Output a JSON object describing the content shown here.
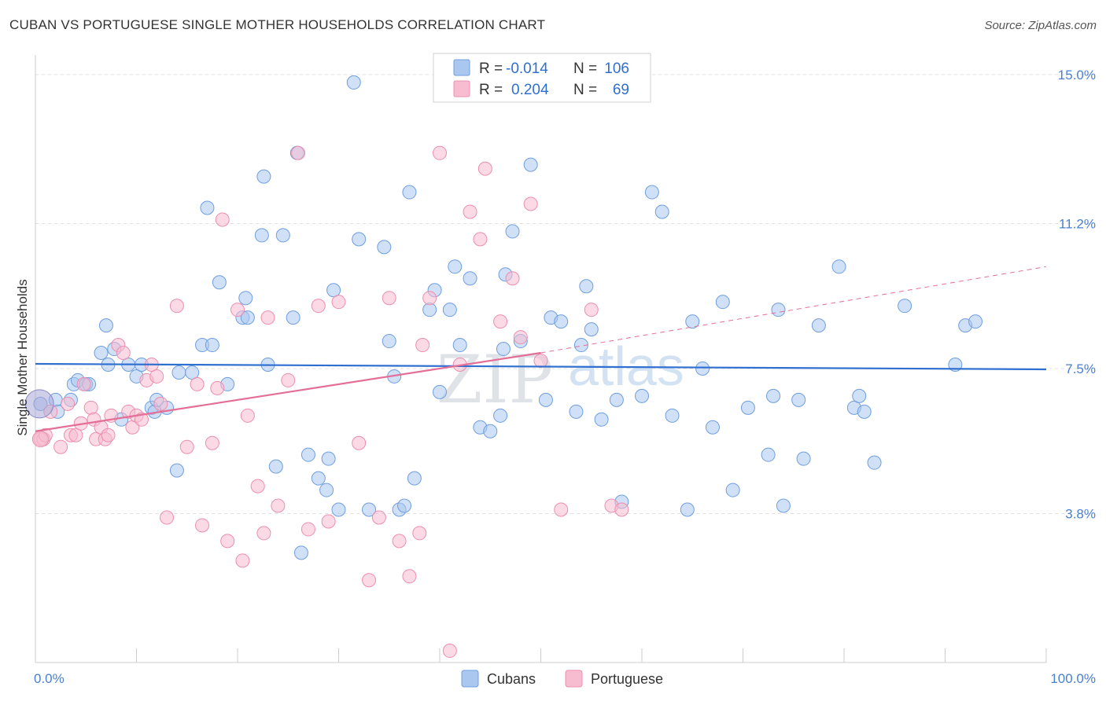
{
  "header": {
    "title": "CUBAN VS PORTUGUESE SINGLE MOTHER HOUSEHOLDS CORRELATION CHART",
    "source": "Source: ZipAtlas.com"
  },
  "watermark": {
    "zip": "ZIP",
    "atlas": "atlas"
  },
  "legend": {
    "r_label": "R =",
    "n_label": "N =",
    "rows": [
      {
        "r": "-0.014",
        "n": "106",
        "color": "#a9c7ef",
        "stroke": "#6f9fe0"
      },
      {
        "r": "0.204",
        "n": "69",
        "color": "#f7bcd0",
        "stroke": "#ec8fae"
      }
    ]
  },
  "chart_data": {
    "type": "scatter",
    "title": "CUBAN VS PORTUGUESE SINGLE MOTHER HOUSEHOLDS CORRELATION CHART",
    "xlabel": "",
    "ylabel": "Single Mother Households",
    "xlim": [
      0,
      100
    ],
    "ylim": [
      0,
      15.5
    ],
    "x_tick_labels": [
      "0.0%",
      "100.0%"
    ],
    "y_ticks": [
      3.8,
      7.5,
      11.2,
      15.0
    ],
    "y_tick_labels": [
      "3.8%",
      "7.5%",
      "11.2%",
      "15.0%"
    ],
    "grid": true,
    "legend_position": "top-center",
    "series": [
      {
        "name": "Cubans",
        "color": "#a9c7ef",
        "stroke": "#6f9fe0",
        "trend": {
          "x": [
            0,
            100
          ],
          "y": [
            7.62,
            7.48
          ],
          "color": "#2f6fd0"
        },
        "points": [
          [
            0.5,
            6.6
          ],
          [
            2,
            6.7
          ],
          [
            2.2,
            6.4
          ],
          [
            3.5,
            6.7
          ],
          [
            3.8,
            7.1
          ],
          [
            4.2,
            7.2
          ],
          [
            5,
            7.1
          ],
          [
            5.3,
            7.1
          ],
          [
            6.5,
            7.9
          ],
          [
            7,
            8.6
          ],
          [
            7.2,
            7.6
          ],
          [
            7.8,
            8.0
          ],
          [
            8.5,
            6.2
          ],
          [
            9.2,
            7.6
          ],
          [
            10,
            7.3
          ],
          [
            10.5,
            7.6
          ],
          [
            11.5,
            6.5
          ],
          [
            11.8,
            6.4
          ],
          [
            12,
            6.7
          ],
          [
            13,
            6.5
          ],
          [
            14,
            4.9
          ],
          [
            14.2,
            7.4
          ],
          [
            15.5,
            7.4
          ],
          [
            16.5,
            8.1
          ],
          [
            17,
            11.6
          ],
          [
            17.5,
            8.1
          ],
          [
            18.2,
            9.7
          ],
          [
            19,
            7.1
          ],
          [
            20.5,
            8.8
          ],
          [
            20.8,
            9.3
          ],
          [
            21,
            8.8
          ],
          [
            22.4,
            10.9
          ],
          [
            22.6,
            12.4
          ],
          [
            23,
            7.6
          ],
          [
            23.8,
            5.0
          ],
          [
            24.5,
            10.9
          ],
          [
            25.5,
            8.8
          ],
          [
            25.9,
            13.0
          ],
          [
            26.3,
            2.8
          ],
          [
            27,
            5.3
          ],
          [
            28,
            4.7
          ],
          [
            28.8,
            4.4
          ],
          [
            29,
            5.2
          ],
          [
            29.5,
            9.5
          ],
          [
            30,
            3.9
          ],
          [
            31.5,
            14.8
          ],
          [
            32,
            10.8
          ],
          [
            33,
            3.9
          ],
          [
            34.5,
            10.6
          ],
          [
            35,
            8.2
          ],
          [
            35.5,
            7.3
          ],
          [
            36,
            3.9
          ],
          [
            36.5,
            4.0
          ],
          [
            37,
            12.0
          ],
          [
            37.5,
            4.7
          ],
          [
            39,
            9.0
          ],
          [
            39.5,
            9.5
          ],
          [
            40,
            6.9
          ],
          [
            41,
            9.0
          ],
          [
            41.5,
            10.1
          ],
          [
            42,
            8.1
          ],
          [
            43,
            9.8
          ],
          [
            44,
            6.0
          ],
          [
            45,
            5.9
          ],
          [
            46,
            6.3
          ],
          [
            46.3,
            8.0
          ],
          [
            46.5,
            9.9
          ],
          [
            47.2,
            11.0
          ],
          [
            48,
            8.2
          ],
          [
            49,
            12.7
          ],
          [
            50.5,
            6.7
          ],
          [
            51,
            8.8
          ],
          [
            52,
            8.7
          ],
          [
            53.5,
            6.4
          ],
          [
            54,
            8.1
          ],
          [
            54.5,
            9.6
          ],
          [
            55,
            8.5
          ],
          [
            56,
            6.2
          ],
          [
            57.5,
            6.7
          ],
          [
            58,
            4.1
          ],
          [
            60,
            6.8
          ],
          [
            61,
            12.0
          ],
          [
            62,
            11.5
          ],
          [
            63,
            6.3
          ],
          [
            64.5,
            3.9
          ],
          [
            65,
            8.7
          ],
          [
            66,
            7.5
          ],
          [
            67,
            6.0
          ],
          [
            68,
            9.2
          ],
          [
            69,
            4.4
          ],
          [
            70.5,
            6.5
          ],
          [
            72.5,
            5.3
          ],
          [
            73,
            6.8
          ],
          [
            73.5,
            9.0
          ],
          [
            74,
            4.0
          ],
          [
            75.5,
            6.7
          ],
          [
            76,
            5.2
          ],
          [
            77.5,
            8.6
          ],
          [
            79.5,
            10.1
          ],
          [
            81,
            6.5
          ],
          [
            81.5,
            6.8
          ],
          [
            82,
            6.4
          ],
          [
            83,
            5.1
          ],
          [
            86,
            9.1
          ],
          [
            91,
            7.6
          ],
          [
            92,
            8.6
          ],
          [
            93,
            8.7
          ]
        ]
      },
      {
        "name": "Portuguese",
        "color": "#f7bcd0",
        "stroke": "#ec8fae",
        "trend": {
          "x": [
            0,
            50
          ],
          "y": [
            5.9,
            7.9
          ],
          "extended": {
            "x": [
              50,
              100
            ],
            "y": [
              7.9,
              10.1
            ]
          },
          "color": "#e46f96"
        },
        "points": [
          [
            0.5,
            5.7
          ],
          [
            0.8,
            5.7
          ],
          [
            1,
            5.8
          ],
          [
            1.5,
            6.4
          ],
          [
            2.5,
            5.5
          ],
          [
            3.2,
            6.6
          ],
          [
            3.5,
            5.8
          ],
          [
            4,
            5.8
          ],
          [
            4.5,
            6.1
          ],
          [
            4.8,
            7.1
          ],
          [
            5.5,
            6.5
          ],
          [
            5.8,
            6.2
          ],
          [
            6,
            5.7
          ],
          [
            6.5,
            6.0
          ],
          [
            6.9,
            5.7
          ],
          [
            7.2,
            5.8
          ],
          [
            7.5,
            6.3
          ],
          [
            8.2,
            8.1
          ],
          [
            8.7,
            7.9
          ],
          [
            9.2,
            6.4
          ],
          [
            9.6,
            6.0
          ],
          [
            10,
            6.3
          ],
          [
            10.5,
            6.2
          ],
          [
            11,
            7.2
          ],
          [
            11.5,
            7.6
          ],
          [
            12,
            7.3
          ],
          [
            12.4,
            6.6
          ],
          [
            13,
            3.7
          ],
          [
            14,
            9.1
          ],
          [
            15,
            5.5
          ],
          [
            16,
            7.1
          ],
          [
            16.5,
            3.5
          ],
          [
            17.5,
            5.6
          ],
          [
            18,
            7.0
          ],
          [
            18.5,
            11.3
          ],
          [
            19,
            3.1
          ],
          [
            20,
            9.0
          ],
          [
            20.5,
            2.6
          ],
          [
            21,
            6.3
          ],
          [
            22,
            4.5
          ],
          [
            22.6,
            3.3
          ],
          [
            23,
            8.8
          ],
          [
            24,
            4.0
          ],
          [
            25,
            7.2
          ],
          [
            26,
            13.0
          ],
          [
            27,
            3.4
          ],
          [
            28,
            9.1
          ],
          [
            29,
            3.6
          ],
          [
            30,
            9.2
          ],
          [
            32,
            5.6
          ],
          [
            33,
            2.1
          ],
          [
            34,
            3.7
          ],
          [
            35,
            9.3
          ],
          [
            36,
            3.1
          ],
          [
            37,
            2.2
          ],
          [
            38,
            3.3
          ],
          [
            38.3,
            8.1
          ],
          [
            39,
            9.3
          ],
          [
            40,
            13.0
          ],
          [
            41,
            0.3
          ],
          [
            42,
            7.6
          ],
          [
            43,
            11.5
          ],
          [
            44,
            10.8
          ],
          [
            44.5,
            12.6
          ],
          [
            46,
            8.7
          ],
          [
            47.2,
            9.8
          ],
          [
            48,
            8.3
          ],
          [
            49,
            11.7
          ],
          [
            50,
            7.7
          ],
          [
            52,
            3.9
          ],
          [
            55,
            9.0
          ],
          [
            57,
            4.0
          ],
          [
            58,
            3.9
          ]
        ]
      }
    ]
  },
  "bottom_legend": [
    {
      "label": "Cubans",
      "color": "#a9c7ef",
      "stroke": "#6f9fe0"
    },
    {
      "label": "Portuguese",
      "color": "#f7bcd0",
      "stroke": "#ec8fae"
    }
  ]
}
